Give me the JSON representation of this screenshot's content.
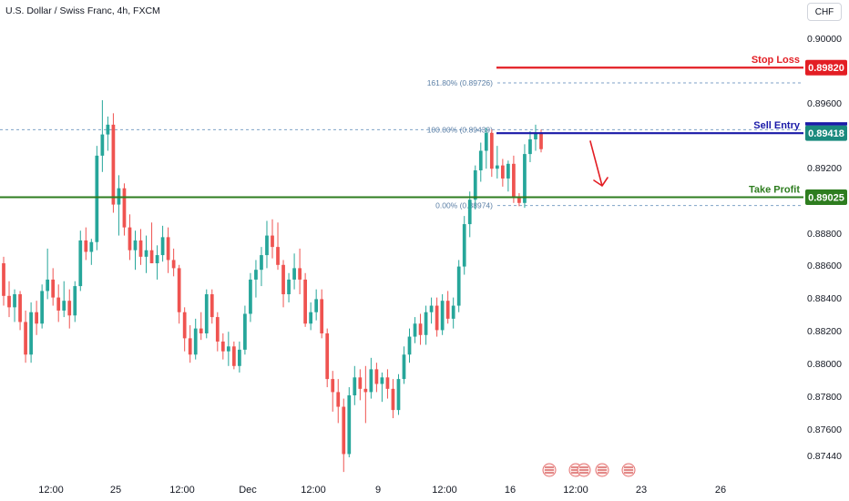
{
  "header": {
    "symbol_title": "U.S. Dollar / Swiss Franc, 4h, FXCM",
    "currency_button": "CHF"
  },
  "chart_data": {
    "type": "candlestick",
    "title": "U.S. Dollar / Swiss Franc, 4h, FXCM",
    "y_axis": {
      "side": "right",
      "ticks": [
        "0.90000",
        "0.89600",
        "0.89200",
        "0.88800",
        "0.88600",
        "0.88400",
        "0.88200",
        "0.88000",
        "0.87800",
        "0.87600",
        "0.87440"
      ],
      "ylim": [
        0.8732,
        0.9018
      ]
    },
    "x_axis": {
      "ticks": [
        "12:00",
        "25",
        "12:00",
        "Dec",
        "12:00",
        "9",
        "12:00",
        "16",
        "12:00",
        "23",
        "26"
      ]
    },
    "levels": [
      {
        "name": "Stop Loss",
        "value": "0.89820",
        "price": 0.8982,
        "color": "#e31e24"
      },
      {
        "name": "Sell Entry",
        "value": "0.89418",
        "price": 0.89418,
        "color": "#1a1aa8"
      },
      {
        "name": "Take Profit",
        "value": "0.89025",
        "price": 0.89025,
        "color": "#2e7d1f"
      }
    ],
    "fib_levels": [
      {
        "label": "161.80% (0.89726)",
        "price": 0.89726
      },
      {
        "label": "100.00% (0.89439)",
        "price": 0.89439
      },
      {
        "label": "0.00% (0.88974)",
        "price": 0.88974
      }
    ],
    "bias": "bearish",
    "colors": {
      "up": "#26a69a",
      "down": "#ef5350"
    },
    "candles": [
      [
        0.8862,
        0.8866,
        0.8836,
        0.8842
      ],
      [
        0.8842,
        0.8851,
        0.8829,
        0.8835
      ],
      [
        0.8835,
        0.8846,
        0.8826,
        0.8843
      ],
      [
        0.8843,
        0.8845,
        0.8821,
        0.8826
      ],
      [
        0.8826,
        0.8833,
        0.8801,
        0.8806
      ],
      [
        0.8806,
        0.8838,
        0.8801,
        0.8832
      ],
      [
        0.8832,
        0.8839,
        0.8818,
        0.8825
      ],
      [
        0.8825,
        0.8849,
        0.8822,
        0.8845
      ],
      [
        0.8845,
        0.8871,
        0.884,
        0.8852
      ],
      [
        0.8852,
        0.8859,
        0.8836,
        0.8841
      ],
      [
        0.8841,
        0.8849,
        0.8826,
        0.8833
      ],
      [
        0.8833,
        0.8851,
        0.8829,
        0.8839
      ],
      [
        0.8839,
        0.8846,
        0.8822,
        0.883
      ],
      [
        0.883,
        0.8851,
        0.8826,
        0.8848
      ],
      [
        0.8848,
        0.8882,
        0.8845,
        0.8876
      ],
      [
        0.8876,
        0.8884,
        0.8864,
        0.8869
      ],
      [
        0.8869,
        0.8877,
        0.8861,
        0.8875
      ],
      [
        0.8875,
        0.8934,
        0.887,
        0.8928
      ],
      [
        0.8928,
        0.8962,
        0.8918,
        0.8941
      ],
      [
        0.8941,
        0.8952,
        0.8931,
        0.8947
      ],
      [
        0.8947,
        0.8954,
        0.8893,
        0.8898
      ],
      [
        0.8898,
        0.8916,
        0.8879,
        0.8908
      ],
      [
        0.8908,
        0.8911,
        0.8879,
        0.8884
      ],
      [
        0.8884,
        0.8892,
        0.8864,
        0.887
      ],
      [
        0.887,
        0.8882,
        0.8858,
        0.8876
      ],
      [
        0.8876,
        0.8883,
        0.8861,
        0.8866
      ],
      [
        0.8866,
        0.8879,
        0.8856,
        0.887
      ],
      [
        0.887,
        0.8887,
        0.8862,
        0.8862
      ],
      [
        0.8862,
        0.8873,
        0.8852,
        0.8867
      ],
      [
        0.8867,
        0.8885,
        0.8863,
        0.8878
      ],
      [
        0.8878,
        0.8884,
        0.8856,
        0.8864
      ],
      [
        0.8864,
        0.8871,
        0.8854,
        0.8859
      ],
      [
        0.8859,
        0.8861,
        0.8825,
        0.8832
      ],
      [
        0.8832,
        0.8835,
        0.8808,
        0.8816
      ],
      [
        0.8816,
        0.8824,
        0.8801,
        0.8806
      ],
      [
        0.8806,
        0.8828,
        0.8803,
        0.8822
      ],
      [
        0.8822,
        0.8832,
        0.8815,
        0.8819
      ],
      [
        0.8819,
        0.8846,
        0.8816,
        0.8843
      ],
      [
        0.8843,
        0.8846,
        0.8825,
        0.8829
      ],
      [
        0.8829,
        0.8832,
        0.8808,
        0.8814
      ],
      [
        0.8814,
        0.8819,
        0.8803,
        0.8808
      ],
      [
        0.8808,
        0.882,
        0.8799,
        0.8811
      ],
      [
        0.8811,
        0.8814,
        0.8797,
        0.8799
      ],
      [
        0.8799,
        0.8814,
        0.8795,
        0.8809
      ],
      [
        0.8809,
        0.8836,
        0.8806,
        0.8831
      ],
      [
        0.8831,
        0.8856,
        0.8826,
        0.8852
      ],
      [
        0.8852,
        0.8864,
        0.8841,
        0.8858
      ],
      [
        0.8858,
        0.8872,
        0.8848,
        0.8867
      ],
      [
        0.8867,
        0.8888,
        0.8859,
        0.8879
      ],
      [
        0.8879,
        0.8889,
        0.8865,
        0.8872
      ],
      [
        0.8872,
        0.8887,
        0.8858,
        0.8861
      ],
      [
        0.8861,
        0.8864,
        0.8835,
        0.8843
      ],
      [
        0.8843,
        0.8856,
        0.8838,
        0.8852
      ],
      [
        0.8852,
        0.8868,
        0.8846,
        0.8859
      ],
      [
        0.8859,
        0.8871,
        0.8843,
        0.8852
      ],
      [
        0.8852,
        0.8856,
        0.8823,
        0.8825
      ],
      [
        0.8825,
        0.8838,
        0.8821,
        0.8832
      ],
      [
        0.8832,
        0.8846,
        0.8827,
        0.884
      ],
      [
        0.884,
        0.8846,
        0.8816,
        0.8819
      ],
      [
        0.8819,
        0.8822,
        0.8786,
        0.8791
      ],
      [
        0.8791,
        0.8796,
        0.8771,
        0.8783
      ],
      [
        0.8783,
        0.8791,
        0.8764,
        0.8774
      ],
      [
        0.8774,
        0.8779,
        0.8734,
        0.8745
      ],
      [
        0.8745,
        0.8786,
        0.8743,
        0.8781
      ],
      [
        0.8781,
        0.8799,
        0.8775,
        0.8792
      ],
      [
        0.8792,
        0.8797,
        0.8778,
        0.8785
      ],
      [
        0.8785,
        0.8799,
        0.8764,
        0.8783
      ],
      [
        0.8783,
        0.8804,
        0.8779,
        0.8797
      ],
      [
        0.8797,
        0.8801,
        0.8783,
        0.8788
      ],
      [
        0.8788,
        0.8795,
        0.8777,
        0.8792
      ],
      [
        0.8792,
        0.8797,
        0.8779,
        0.8785
      ],
      [
        0.8785,
        0.8791,
        0.8767,
        0.8772
      ],
      [
        0.8772,
        0.8794,
        0.8769,
        0.8791
      ],
      [
        0.8791,
        0.8811,
        0.8788,
        0.8806
      ],
      [
        0.8806,
        0.8822,
        0.8801,
        0.8817
      ],
      [
        0.8817,
        0.8829,
        0.8813,
        0.8825
      ],
      [
        0.8825,
        0.8831,
        0.8812,
        0.8818
      ],
      [
        0.8818,
        0.8836,
        0.8812,
        0.8832
      ],
      [
        0.8832,
        0.8841,
        0.8825,
        0.8836
      ],
      [
        0.8836,
        0.8841,
        0.8817,
        0.8821
      ],
      [
        0.8821,
        0.8843,
        0.8818,
        0.8839
      ],
      [
        0.8839,
        0.8845,
        0.8825,
        0.8828
      ],
      [
        0.8828,
        0.8841,
        0.8822,
        0.8836
      ],
      [
        0.8836,
        0.8864,
        0.8832,
        0.886
      ],
      [
        0.886,
        0.8891,
        0.8855,
        0.8886
      ],
      [
        0.8886,
        0.8906,
        0.8878,
        0.8901
      ],
      [
        0.8901,
        0.8922,
        0.8895,
        0.8919
      ],
      [
        0.8919,
        0.8936,
        0.8912,
        0.8931
      ],
      [
        0.8931,
        0.8945,
        0.892,
        0.8942
      ],
      [
        0.8942,
        0.8944,
        0.8915,
        0.892
      ],
      [
        0.892,
        0.8934,
        0.8914,
        0.8922
      ],
      [
        0.8922,
        0.8926,
        0.8909,
        0.8914
      ],
      [
        0.8914,
        0.8925,
        0.8906,
        0.8923
      ],
      [
        0.8923,
        0.8928,
        0.8899,
        0.8902
      ],
      [
        0.8902,
        0.8905,
        0.8897,
        0.8899
      ],
      [
        0.8899,
        0.8935,
        0.8896,
        0.8929
      ],
      [
        0.8929,
        0.8943,
        0.8924,
        0.8938
      ],
      [
        0.8938,
        0.8947,
        0.8931,
        0.8942
      ],
      [
        0.8942,
        0.8944,
        0.893,
        0.8932
      ]
    ]
  }
}
